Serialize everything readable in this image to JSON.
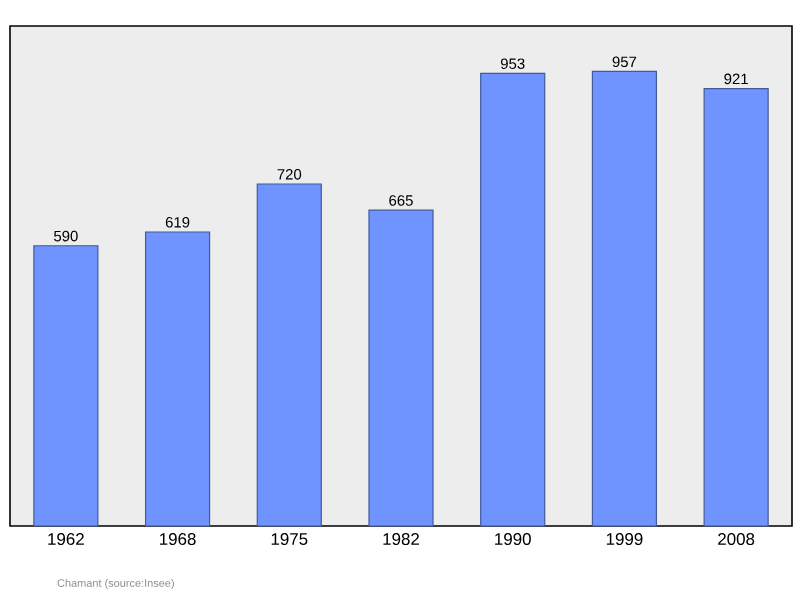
{
  "chart_data": {
    "type": "bar",
    "categories": [
      "1962",
      "1968",
      "1975",
      "1982",
      "1990",
      "1999",
      "2008"
    ],
    "values": [
      590,
      619,
      720,
      665,
      953,
      957,
      921
    ],
    "color": "#7094ff",
    "data_labels": true,
    "annotations": [
      "Chamant    (source:Insee)"
    ]
  }
}
